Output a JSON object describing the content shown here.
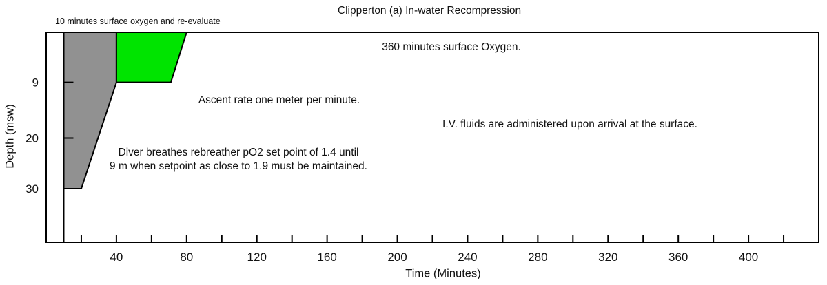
{
  "chart_data": {
    "type": "area",
    "title": "Clipperton (a) In-water Recompression",
    "xlabel": "Time (Minutes)",
    "ylabel": "Depth (msw)",
    "grid": false,
    "legend": false,
    "x_axis": {
      "min": 0,
      "max": 440,
      "tick_min": 20,
      "tick_max": 420,
      "tick_step": 20,
      "labeled_ticks": [
        40,
        80,
        120,
        160,
        200,
        240,
        280,
        320,
        360,
        400
      ]
    },
    "y_axis": {
      "min": 0,
      "max": 41,
      "ticks": [
        9,
        20,
        30
      ],
      "direction": "depth-increases-downward"
    },
    "surface_interval_minutes": 10,
    "regions": [
      {
        "name": "rebreather-descent-phase",
        "fill": "#919191",
        "outline": "#000000",
        "points_time_depth": [
          [
            10,
            0
          ],
          [
            40,
            0
          ],
          [
            40,
            9
          ],
          [
            20,
            30
          ],
          [
            10,
            30
          ]
        ]
      },
      {
        "name": "oxygen-9msw-phase",
        "fill": "#00e400",
        "outline": "#000000",
        "points_time_depth": [
          [
            40,
            0
          ],
          [
            80,
            0
          ],
          [
            71,
            9
          ],
          [
            40,
            9
          ]
        ]
      }
    ]
  },
  "annotations": {
    "pre_note": "10 minutes surface oxygen and re-evaluate",
    "surface_oxygen": "360 minutes surface Oxygen.",
    "ascent_rate": "Ascent rate one meter per minute.",
    "iv_fluids": "I.V. fluids are administered upon arrival at the surface.",
    "rebreather_line1": "Diver breathes rebreather pO2 set point of 1.4 until",
    "rebreather_line2": "9 m when setpoint as close to 1.9 must be maintained."
  }
}
